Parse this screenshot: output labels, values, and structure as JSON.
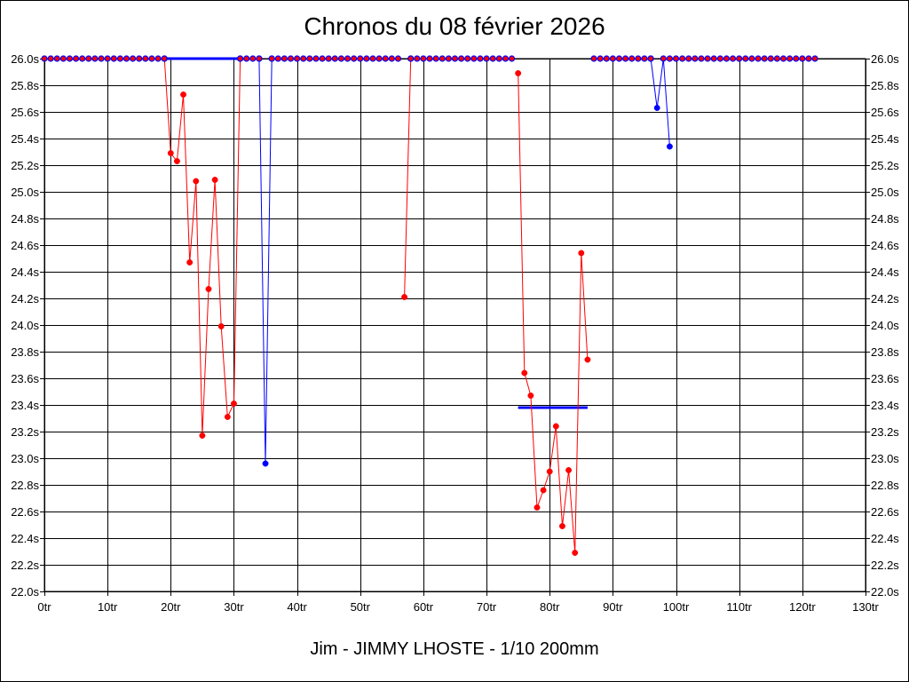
{
  "chart_data": {
    "type": "line",
    "title": "Chronos du 08 février 2026",
    "subtitle": "Jim - JIMMY LHOSTE - 1/10 200mm",
    "x_ticks": [
      "0tr",
      "10tr",
      "20tr",
      "30tr",
      "40tr",
      "50tr",
      "60tr",
      "70tr",
      "80tr",
      "90tr",
      "100tr",
      "110tr",
      "120tr",
      "130tr"
    ],
    "x_tick_values": [
      0,
      10,
      20,
      30,
      40,
      50,
      60,
      70,
      80,
      90,
      100,
      110,
      120,
      130
    ],
    "xlim": [
      0,
      130
    ],
    "y_ticks": [
      "26.0s",
      "25.8s",
      "25.6s",
      "25.4s",
      "25.2s",
      "25.0s",
      "24.8s",
      "24.6s",
      "24.4s",
      "24.2s",
      "24.0s",
      "23.8s",
      "23.6s",
      "23.4s",
      "23.2s",
      "23.0s",
      "22.8s",
      "22.6s",
      "22.4s",
      "22.2s",
      "22.0s"
    ],
    "y_tick_values": [
      26.0,
      25.8,
      25.6,
      25.4,
      25.2,
      25.0,
      24.8,
      24.6,
      24.4,
      24.2,
      24.0,
      23.8,
      23.6,
      23.4,
      23.2,
      23.0,
      22.8,
      22.6,
      22.4,
      22.2,
      22.0
    ],
    "ylim": [
      22.0,
      26.0
    ],
    "grid": true,
    "colors": {
      "red": "#ff0000",
      "blue": "#0000ff",
      "grid": "#000000"
    },
    "series": [
      {
        "color": "red",
        "x": [
          0,
          1,
          2,
          3,
          4,
          5,
          6,
          7,
          8,
          9,
          10,
          11,
          12,
          13,
          14,
          15,
          16,
          17,
          18,
          19
        ],
        "y": [
          26,
          26,
          26,
          26,
          26,
          26,
          26,
          26,
          26,
          26,
          26,
          26,
          26,
          26,
          26,
          26,
          26,
          26,
          26,
          26
        ]
      },
      {
        "color": "red",
        "x": [
          19,
          20,
          21,
          22,
          23,
          24,
          25,
          26,
          27,
          28,
          29,
          30,
          31
        ],
        "y": [
          26.0,
          25.29,
          25.23,
          25.73,
          24.47,
          25.08,
          23.17,
          24.27,
          25.09,
          23.99,
          23.31,
          23.41,
          26.0
        ]
      },
      {
        "color": "red",
        "x": [
          31,
          32,
          33,
          34
        ],
        "y": [
          26,
          26,
          26,
          26
        ]
      },
      {
        "color": "blue",
        "x": [
          34,
          35,
          36
        ],
        "y": [
          26.0,
          22.96,
          26.0
        ]
      },
      {
        "color": "red",
        "x": [
          36,
          37,
          38,
          39,
          40,
          41,
          42,
          43,
          44,
          45,
          46,
          47,
          48,
          49,
          50,
          51,
          52,
          53,
          54,
          55,
          56
        ],
        "y": [
          26,
          26,
          26,
          26,
          26,
          26,
          26,
          26,
          26,
          26,
          26,
          26,
          26,
          26,
          26,
          26,
          26,
          26,
          26,
          26,
          26
        ]
      },
      {
        "color": "red",
        "x": [
          57,
          58
        ],
        "y": [
          24.21,
          26.0
        ]
      },
      {
        "color": "red",
        "x": [
          58,
          59,
          60,
          61,
          62,
          63,
          64,
          65,
          66,
          67,
          68,
          69,
          70,
          71,
          72,
          73,
          74
        ],
        "y": [
          26,
          26,
          26,
          26,
          26,
          26,
          26,
          26,
          26,
          26,
          26,
          26,
          26,
          26,
          26,
          26,
          26
        ]
      },
      {
        "color": "red",
        "x": [
          75,
          76,
          77,
          78,
          79,
          80,
          81,
          82,
          83,
          84,
          85,
          86
        ],
        "y": [
          25.89,
          23.64,
          23.47,
          22.63,
          22.76,
          22.9,
          23.24,
          22.49,
          22.91,
          22.29,
          24.54,
          23.74
        ]
      },
      {
        "color": "red",
        "x": [
          87,
          88,
          89,
          90,
          91,
          92,
          93,
          94,
          95,
          96
        ],
        "y": [
          26,
          26,
          26,
          26,
          26,
          26,
          26,
          26,
          26,
          26
        ]
      },
      {
        "color": "blue",
        "x": [
          96,
          97,
          98,
          99
        ],
        "y": [
          26.0,
          25.63,
          26.0,
          25.34
        ]
      },
      {
        "color": "red",
        "x": [
          99,
          100,
          101,
          102,
          103,
          104,
          105,
          106,
          107,
          108,
          109,
          110,
          111,
          112,
          113,
          114,
          115,
          116,
          117,
          118,
          119,
          120,
          121,
          122
        ],
        "y": [
          26,
          26,
          26,
          26,
          26,
          26,
          26,
          26,
          26,
          26,
          26,
          26,
          26,
          26,
          26,
          26,
          26,
          26,
          26,
          26,
          26,
          26,
          26,
          26
        ]
      }
    ],
    "reference_lines": [
      {
        "color": "blue",
        "x": [
          19,
          31
        ],
        "y": 26.0
      },
      {
        "color": "blue",
        "x": [
          75,
          86
        ],
        "y": 23.38
      }
    ]
  }
}
